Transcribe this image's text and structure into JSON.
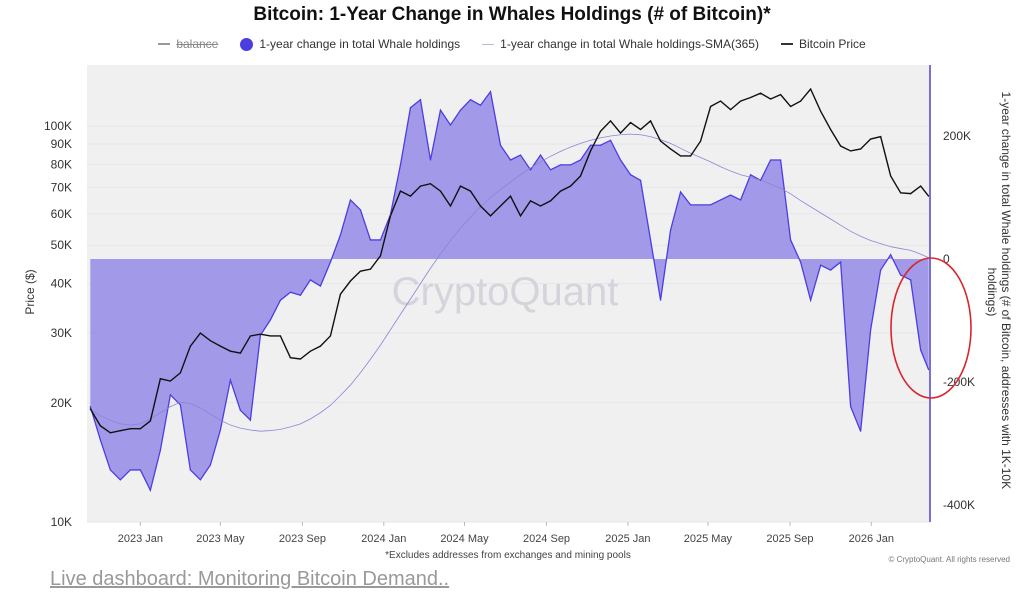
{
  "chart_data": {
    "type": "area",
    "title": "Bitcoin: 1-Year Change in Whales Holdings (# of Bitcoin)*",
    "legend": {
      "placement": "top",
      "entries": [
        {
          "name": "balance",
          "hidden": true
        },
        {
          "name": "1-year change in total Whale holdings",
          "marker": "dot"
        },
        {
          "name": "1-year change in total Whale holdings-SMA(365)",
          "marker": "thin-line"
        },
        {
          "name": "Bitcoin Price",
          "marker": "line"
        }
      ]
    },
    "xlim": [
      "2022-10-13",
      "2026-03-30"
    ],
    "x_ticks": [
      "2023 Jan",
      "2023 May",
      "2023 Sep",
      "2024 Jan",
      "2024 May",
      "2024 Sep",
      "2025 Jan",
      "2025 May",
      "2025 Sep",
      "2026 Jan"
    ],
    "x_tick_dates": [
      "2023-01-01",
      "2023-05-01",
      "2023-09-01",
      "2024-01-01",
      "2024-05-01",
      "2024-09-01",
      "2025-01-01",
      "2025-05-01",
      "2025-09-01",
      "2026-01-01"
    ],
    "y_left": {
      "label": "Price ($)",
      "scale": "log",
      "range": [
        10000,
        300000
      ],
      "ticks": [
        10000,
        20000,
        30000,
        40000,
        50000,
        60000,
        70000,
        80000,
        90000,
        100000
      ],
      "tick_labels": [
        "10K",
        "20K",
        "30K",
        "40K",
        "50K",
        "60K",
        "70K",
        "80K",
        "90K",
        "100K"
      ]
    },
    "y_right": {
      "label": "1-year change in total Whale holdings (# of Bitcoin, addresses with 1K-10K holdings)",
      "scale": "linear",
      "range": [
        -420000,
        290000
      ],
      "ticks": [
        200000,
        0,
        -200000,
        -400000
      ],
      "tick_labels": [
        "200K",
        "0",
        "-200K",
        "-400K"
      ]
    },
    "grid": true,
    "x": [
      "2022-10-18",
      "2022-11-02",
      "2022-11-17",
      "2022-12-02",
      "2022-12-17",
      "2023-01-01",
      "2023-01-16",
      "2023-01-31",
      "2023-02-15",
      "2023-03-02",
      "2023-03-17",
      "2023-04-01",
      "2023-04-16",
      "2023-05-01",
      "2023-05-16",
      "2023-05-31",
      "2023-06-15",
      "2023-06-30",
      "2023-07-15",
      "2023-07-30",
      "2023-08-14",
      "2023-08-29",
      "2023-09-13",
      "2023-09-28",
      "2023-10-13",
      "2023-10-28",
      "2023-11-12",
      "2023-11-27",
      "2023-12-12",
      "2023-12-27",
      "2024-01-11",
      "2024-01-26",
      "2024-02-10",
      "2024-02-25",
      "2024-03-11",
      "2024-03-26",
      "2024-04-10",
      "2024-04-25",
      "2024-05-10",
      "2024-05-25",
      "2024-06-09",
      "2024-06-24",
      "2024-07-09",
      "2024-07-24",
      "2024-08-08",
      "2024-08-23",
      "2024-09-07",
      "2024-09-22",
      "2024-10-07",
      "2024-10-22",
      "2024-11-06",
      "2024-11-21",
      "2024-12-06",
      "2024-12-21",
      "2025-01-05",
      "2025-01-20",
      "2025-02-04",
      "2025-02-19",
      "2025-03-06",
      "2025-03-21",
      "2025-04-05",
      "2025-04-20",
      "2025-05-05",
      "2025-05-20",
      "2025-06-04",
      "2025-06-19",
      "2025-07-04",
      "2025-07-19",
      "2025-08-03",
      "2025-08-18",
      "2025-09-02",
      "2025-09-17",
      "2025-10-02",
      "2025-10-17",
      "2025-11-01",
      "2025-11-16",
      "2025-12-01",
      "2025-12-16",
      "2025-12-31",
      "2026-01-15",
      "2026-01-30",
      "2026-02-14",
      "2026-03-01",
      "2026-03-16",
      "2026-03-28"
    ],
    "series": [
      {
        "name": "1-year change in total Whale holdings",
        "axis": "right",
        "color": "#4b3ee0",
        "fill": "#9d94e8",
        "values": [
          -240000,
          -294000,
          -343000,
          -359000,
          -343000,
          -343000,
          -376000,
          -311000,
          -221000,
          -237000,
          -343000,
          -359000,
          -335000,
          -278000,
          -197000,
          -246000,
          -262000,
          -124000,
          -99000,
          -67000,
          -54000,
          -59000,
          -34000,
          -44000,
          -5000,
          39000,
          96000,
          80000,
          31000,
          31000,
          72000,
          153000,
          246000,
          259000,
          161000,
          242000,
          218000,
          242000,
          259000,
          250000,
          272000,
          185000,
          161000,
          169000,
          145000,
          169000,
          145000,
          153000,
          153000,
          161000,
          185000,
          185000,
          193000,
          161000,
          137000,
          128000,
          31000,
          -67000,
          47000,
          109000,
          88000,
          88000,
          88000,
          96000,
          104000,
          96000,
          137000,
          128000,
          161000,
          161000,
          31000,
          -5000,
          -67000,
          -10000,
          -18000,
          -5000,
          -240000,
          -280000,
          -115000,
          -18000,
          7000,
          -26000,
          -34000,
          -148000,
          -180000
        ]
      },
      {
        "name": "1-year change in total Whale holdings-SMA(365)",
        "axis": "right",
        "color": "#8a86d8",
        "values": [
          -245000,
          -255000,
          -262000,
          -268000,
          -270000,
          -268000,
          -260000,
          -250000,
          -240000,
          -233000,
          -235000,
          -242000,
          -252000,
          -262000,
          -270000,
          -275000,
          -278000,
          -280000,
          -279000,
          -277000,
          -273000,
          -268000,
          -260000,
          -250000,
          -238000,
          -222000,
          -205000,
          -185000,
          -163000,
          -140000,
          -115000,
          -90000,
          -65000,
          -40000,
          -15000,
          8000,
          30000,
          50000,
          68000,
          85000,
          100000,
          113000,
          125000,
          137000,
          148000,
          158000,
          167000,
          175000,
          182000,
          188000,
          193000,
          197000,
          200000,
          202000,
          203000,
          202000,
          199000,
          194000,
          188000,
          180000,
          172000,
          165000,
          158000,
          150000,
          143000,
          137000,
          133000,
          128000,
          122000,
          115000,
          106000,
          95000,
          85000,
          75000,
          65000,
          55000,
          45000,
          37000,
          30000,
          25000,
          20000,
          17000,
          14000,
          8000,
          2000
        ]
      },
      {
        "name": "Bitcoin Price",
        "axis": "left",
        "color": "#111111",
        "values": [
          19300,
          17500,
          16800,
          17000,
          17200,
          17200,
          18000,
          23000,
          22700,
          23800,
          27800,
          30000,
          28700,
          27800,
          27000,
          26700,
          29500,
          29800,
          29500,
          29500,
          26000,
          25800,
          27000,
          27800,
          29500,
          37600,
          40600,
          43000,
          43500,
          47000,
          59300,
          68500,
          66500,
          70500,
          71500,
          68500,
          62800,
          70500,
          68500,
          62800,
          59300,
          62800,
          66500,
          59300,
          64700,
          62800,
          64700,
          68500,
          70500,
          74800,
          86500,
          97000,
          103000,
          96000,
          102000,
          98000,
          103000,
          91600,
          87500,
          84000,
          84000,
          91600,
          112000,
          115600,
          110000,
          115600,
          118000,
          121000,
          117000,
          120000,
          112000,
          115600,
          124000,
          109000,
          98000,
          89000,
          86500,
          87500,
          92700,
          94000,
          74800,
          67800,
          67500,
          70500,
          66500
        ]
      }
    ],
    "watermark": "CryptoQuant",
    "footnote": "*Excludes addresses from exchanges and mining pools",
    "copyright": "© CryptoQuant. All rights reserved",
    "annotation": {
      "shape": "ellipse",
      "color": "#d9252b",
      "highlights": "2026 decline in whale holdings"
    }
  },
  "page": {
    "link_text": "Live dashboard: Monitoring Bitcoin Demand.."
  }
}
